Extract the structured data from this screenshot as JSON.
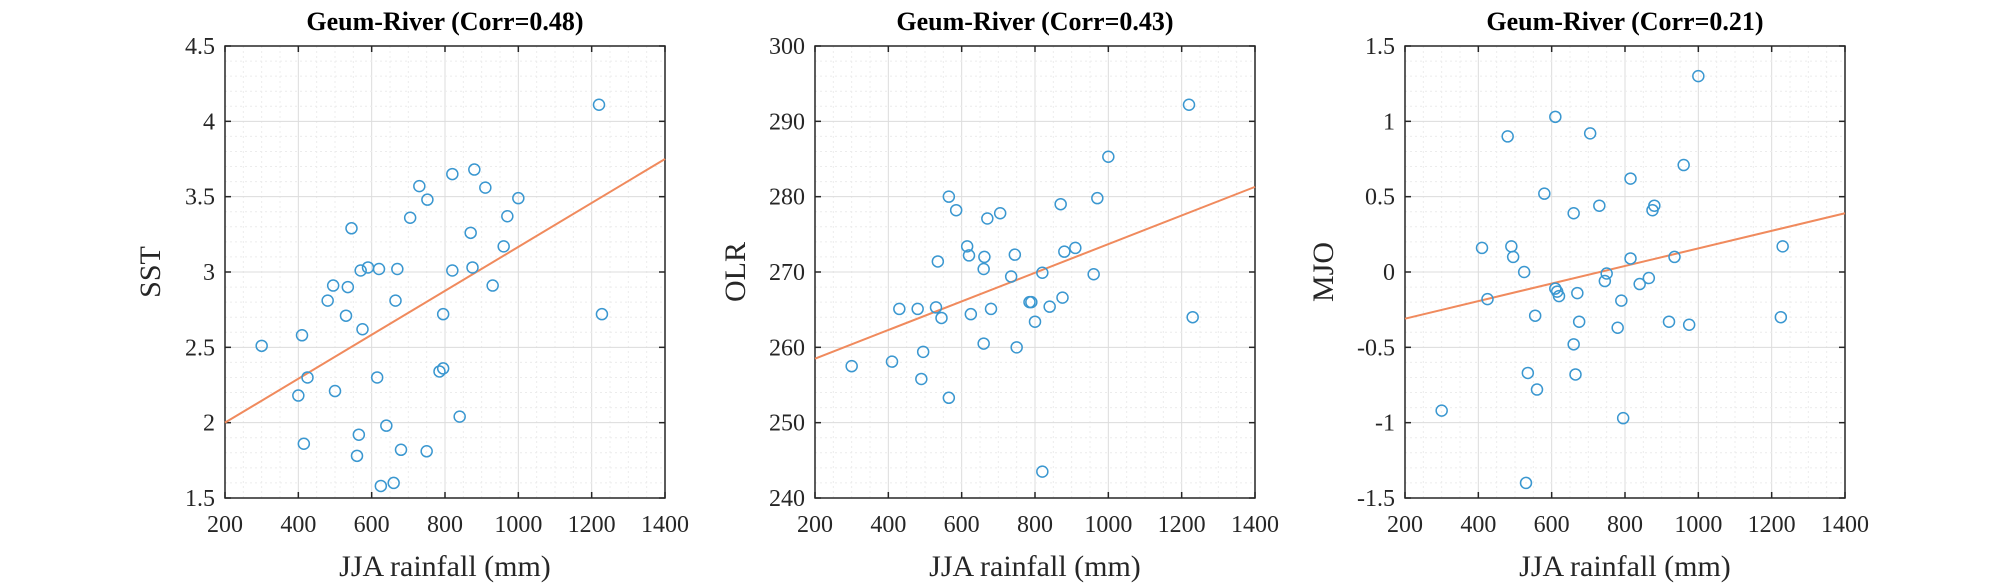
{
  "chart_data": [
    {
      "type": "scatter",
      "title": "Geum-River (Corr=0.48)",
      "xlabel": "JJA rainfall (mm)",
      "ylabel": "SST",
      "xlim": [
        200,
        1400
      ],
      "ylim": [
        1.5,
        4.5
      ],
      "xticks": [
        "200",
        "400",
        "600",
        "800",
        "1000",
        "1200",
        "1400"
      ],
      "yticks": [
        "1.5",
        "2",
        "2.5",
        "3",
        "3.5",
        "4",
        "4.5"
      ],
      "grid": true,
      "colors": {
        "points": "#3a97d0",
        "fit": "#f08a5d"
      },
      "fit_line": {
        "x": [
          200,
          1400
        ],
        "y": [
          2.0,
          3.75
        ]
      },
      "points": [
        [
          300,
          2.51
        ],
        [
          400,
          2.18
        ],
        [
          410,
          2.58
        ],
        [
          415,
          1.86
        ],
        [
          425,
          2.3
        ],
        [
          480,
          2.81
        ],
        [
          495,
          2.91
        ],
        [
          500,
          2.21
        ],
        [
          530,
          2.71
        ],
        [
          535,
          2.9
        ],
        [
          545,
          3.29
        ],
        [
          560,
          1.78
        ],
        [
          565,
          1.92
        ],
        [
          570,
          3.01
        ],
        [
          575,
          2.62
        ],
        [
          590,
          3.03
        ],
        [
          615,
          2.3
        ],
        [
          620,
          3.02
        ],
        [
          625,
          1.58
        ],
        [
          640,
          1.98
        ],
        [
          660,
          1.6
        ],
        [
          665,
          2.81
        ],
        [
          670,
          3.02
        ],
        [
          680,
          1.82
        ],
        [
          705,
          3.36
        ],
        [
          730,
          3.57
        ],
        [
          750,
          1.81
        ],
        [
          752,
          3.48
        ],
        [
          785,
          2.34
        ],
        [
          795,
          2.36
        ],
        [
          795,
          2.72
        ],
        [
          820,
          3.65
        ],
        [
          820,
          3.01
        ],
        [
          840,
          2.04
        ],
        [
          870,
          3.26
        ],
        [
          875,
          3.03
        ],
        [
          880,
          3.68
        ],
        [
          910,
          3.56
        ],
        [
          930,
          2.91
        ],
        [
          960,
          3.17
        ],
        [
          970,
          3.37
        ],
        [
          1000,
          3.49
        ],
        [
          1220,
          4.11
        ],
        [
          1228,
          2.72
        ]
      ]
    },
    {
      "type": "scatter",
      "title": "Geum-River (Corr=0.43)",
      "xlabel": "JJA rainfall (mm)",
      "ylabel": "OLR",
      "xlim": [
        200,
        1400
      ],
      "ylim": [
        240,
        300
      ],
      "xticks": [
        "200",
        "400",
        "600",
        "800",
        "1000",
        "1200",
        "1400"
      ],
      "yticks": [
        "240",
        "250",
        "260",
        "270",
        "280",
        "290",
        "300"
      ],
      "grid": true,
      "colors": {
        "points": "#3a97d0",
        "fit": "#f08a5d"
      },
      "fit_line": {
        "x": [
          200,
          1400
        ],
        "y": [
          258.5,
          281.3
        ]
      },
      "points": [
        [
          300,
          257.5
        ],
        [
          410,
          258.1
        ],
        [
          430,
          265.1
        ],
        [
          480,
          265.1
        ],
        [
          490,
          255.8
        ],
        [
          495,
          259.4
        ],
        [
          530,
          265.3
        ],
        [
          535,
          271.4
        ],
        [
          545,
          263.9
        ],
        [
          565,
          253.3
        ],
        [
          565,
          280.0
        ],
        [
          585,
          278.2
        ],
        [
          615,
          273.4
        ],
        [
          620,
          272.2
        ],
        [
          625,
          264.4
        ],
        [
          660,
          260.5
        ],
        [
          660,
          270.4
        ],
        [
          662,
          272.0
        ],
        [
          670,
          277.1
        ],
        [
          680,
          265.1
        ],
        [
          705,
          277.8
        ],
        [
          735,
          269.4
        ],
        [
          745,
          272.3
        ],
        [
          750,
          260.0
        ],
        [
          785,
          266.0
        ],
        [
          790,
          266.0
        ],
        [
          800,
          263.4
        ],
        [
          820,
          243.5
        ],
        [
          820,
          269.9
        ],
        [
          840,
          265.4
        ],
        [
          870,
          279.0
        ],
        [
          875,
          266.6
        ],
        [
          880,
          272.7
        ],
        [
          910,
          273.2
        ],
        [
          960,
          269.7
        ],
        [
          970,
          279.8
        ],
        [
          1000,
          285.3
        ],
        [
          1220,
          292.2
        ],
        [
          1230,
          264.0
        ]
      ]
    },
    {
      "type": "scatter",
      "title": "Geum-River (Corr=0.21)",
      "xlabel": "JJA rainfall (mm)",
      "ylabel": "MJO",
      "xlim": [
        200,
        1400
      ],
      "ylim": [
        -1.5,
        1.5
      ],
      "xticks": [
        "200",
        "400",
        "600",
        "800",
        "1000",
        "1200",
        "1400"
      ],
      "yticks": [
        "-1.5",
        "-1",
        "-0.5",
        "0",
        "0.5",
        "1",
        "1.5"
      ],
      "grid": true,
      "colors": {
        "points": "#3a97d0",
        "fit": "#f08a5d"
      },
      "fit_line": {
        "x": [
          200,
          1400
        ],
        "y": [
          -0.31,
          0.39
        ]
      },
      "points": [
        [
          300,
          -0.92
        ],
        [
          410,
          0.16
        ],
        [
          425,
          -0.18
        ],
        [
          480,
          0.9
        ],
        [
          490,
          0.17
        ],
        [
          495,
          0.1
        ],
        [
          525,
          0.0
        ],
        [
          530,
          -1.4
        ],
        [
          535,
          -0.67
        ],
        [
          555,
          -0.29
        ],
        [
          560,
          -0.78
        ],
        [
          580,
          0.52
        ],
        [
          610,
          1.03
        ],
        [
          610,
          -0.11
        ],
        [
          615,
          -0.13
        ],
        [
          620,
          -0.16
        ],
        [
          660,
          0.39
        ],
        [
          660,
          -0.48
        ],
        [
          665,
          -0.68
        ],
        [
          670,
          -0.14
        ],
        [
          675,
          -0.33
        ],
        [
          705,
          0.92
        ],
        [
          730,
          0.44
        ],
        [
          745,
          -0.06
        ],
        [
          750,
          -0.01
        ],
        [
          780,
          -0.37
        ],
        [
          790,
          -0.19
        ],
        [
          795,
          -0.97
        ],
        [
          815,
          0.62
        ],
        [
          815,
          0.09
        ],
        [
          840,
          -0.08
        ],
        [
          865,
          -0.04
        ],
        [
          875,
          0.41
        ],
        [
          880,
          0.44
        ],
        [
          920,
          -0.33
        ],
        [
          935,
          0.1
        ],
        [
          960,
          0.71
        ],
        [
          975,
          -0.35
        ],
        [
          1000,
          1.3
        ],
        [
          1225,
          -0.3
        ],
        [
          1230,
          0.17
        ]
      ]
    }
  ]
}
